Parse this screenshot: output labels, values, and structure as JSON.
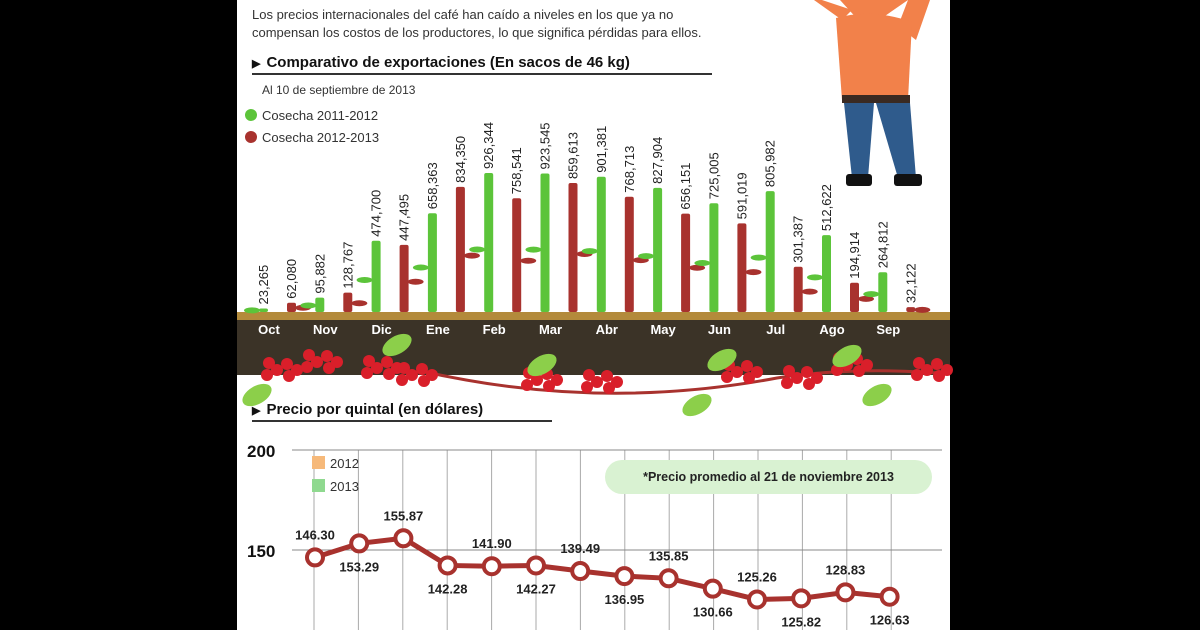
{
  "intro": {
    "line1": "Los precios internacionales del café han caído a niveles en los que ya no",
    "line2": "compensan los costos de los productores, lo que significa pérdidas para ellos."
  },
  "exports_section": {
    "title": "Comparativo de exportaciones (En sacos de 46 kg)",
    "note": "Al 10 de septiembre de 2013"
  },
  "price_section": {
    "title": "Precio por quintal (en dólares)",
    "callout": "*Precio promedio al 21 de noviembre 2013"
  },
  "colors": {
    "green": "#5cc43a",
    "red": "#a8322e",
    "orange_2012": "#f6b97a",
    "green_2013": "#8fd98f",
    "soil": "#3b3327"
  },
  "chart_data": [
    {
      "type": "bar",
      "title": "Comparativo de exportaciones (En sacos de 46 kg)",
      "subtitle": "Al 10 de septiembre de 2013",
      "categories": [
        "Oct",
        "Nov",
        "Dic",
        "Ene",
        "Feb",
        "Mar",
        "Abr",
        "May",
        "Jun",
        "Jul",
        "Ago",
        "Sep"
      ],
      "series": [
        {
          "name": "Cosecha 2011-2012",
          "values": [
            23265,
            95882,
            474700,
            658363,
            926344,
            923545,
            901381,
            827904,
            725005,
            805982,
            512622,
            264812
          ],
          "labels": [
            "23,265",
            "95,882",
            "474,700",
            "658,363",
            "926,344",
            "923,545",
            "901,381",
            "827,904",
            "725,005",
            "805,982",
            "512,622",
            "264,812"
          ]
        },
        {
          "name": "Cosecha 2012-2013",
          "values": [
            62080,
            128767,
            447495,
            834350,
            758541,
            859613,
            768713,
            656151,
            591019,
            301387,
            194914,
            32122
          ],
          "labels": [
            "62,080",
            "128,767",
            "447,495",
            "834,350",
            "758,541",
            "859,613",
            "768,713",
            "656,151",
            "591,019",
            "301,387",
            "194,914",
            "32,122"
          ]
        }
      ],
      "legend": "top-left"
    },
    {
      "type": "line",
      "title": "Precio por quintal (en dólares)",
      "y_ticks": [
        "200",
        "150"
      ],
      "ylim": [
        100,
        200
      ],
      "legend_items": [
        "2012",
        "2013"
      ],
      "values": [
        146.3,
        153.29,
        155.87,
        142.28,
        141.9,
        142.27,
        139.49,
        136.95,
        135.85,
        130.66,
        125.26,
        125.82,
        128.83,
        126.63
      ],
      "labels": [
        "146.30",
        "153.29",
        "155.87",
        "142.28",
        "141.90",
        "142.27",
        "139.49",
        "136.95",
        "135.85",
        "130.66",
        "125.26",
        "125.82",
        "128.83",
        "126.63"
      ]
    }
  ]
}
